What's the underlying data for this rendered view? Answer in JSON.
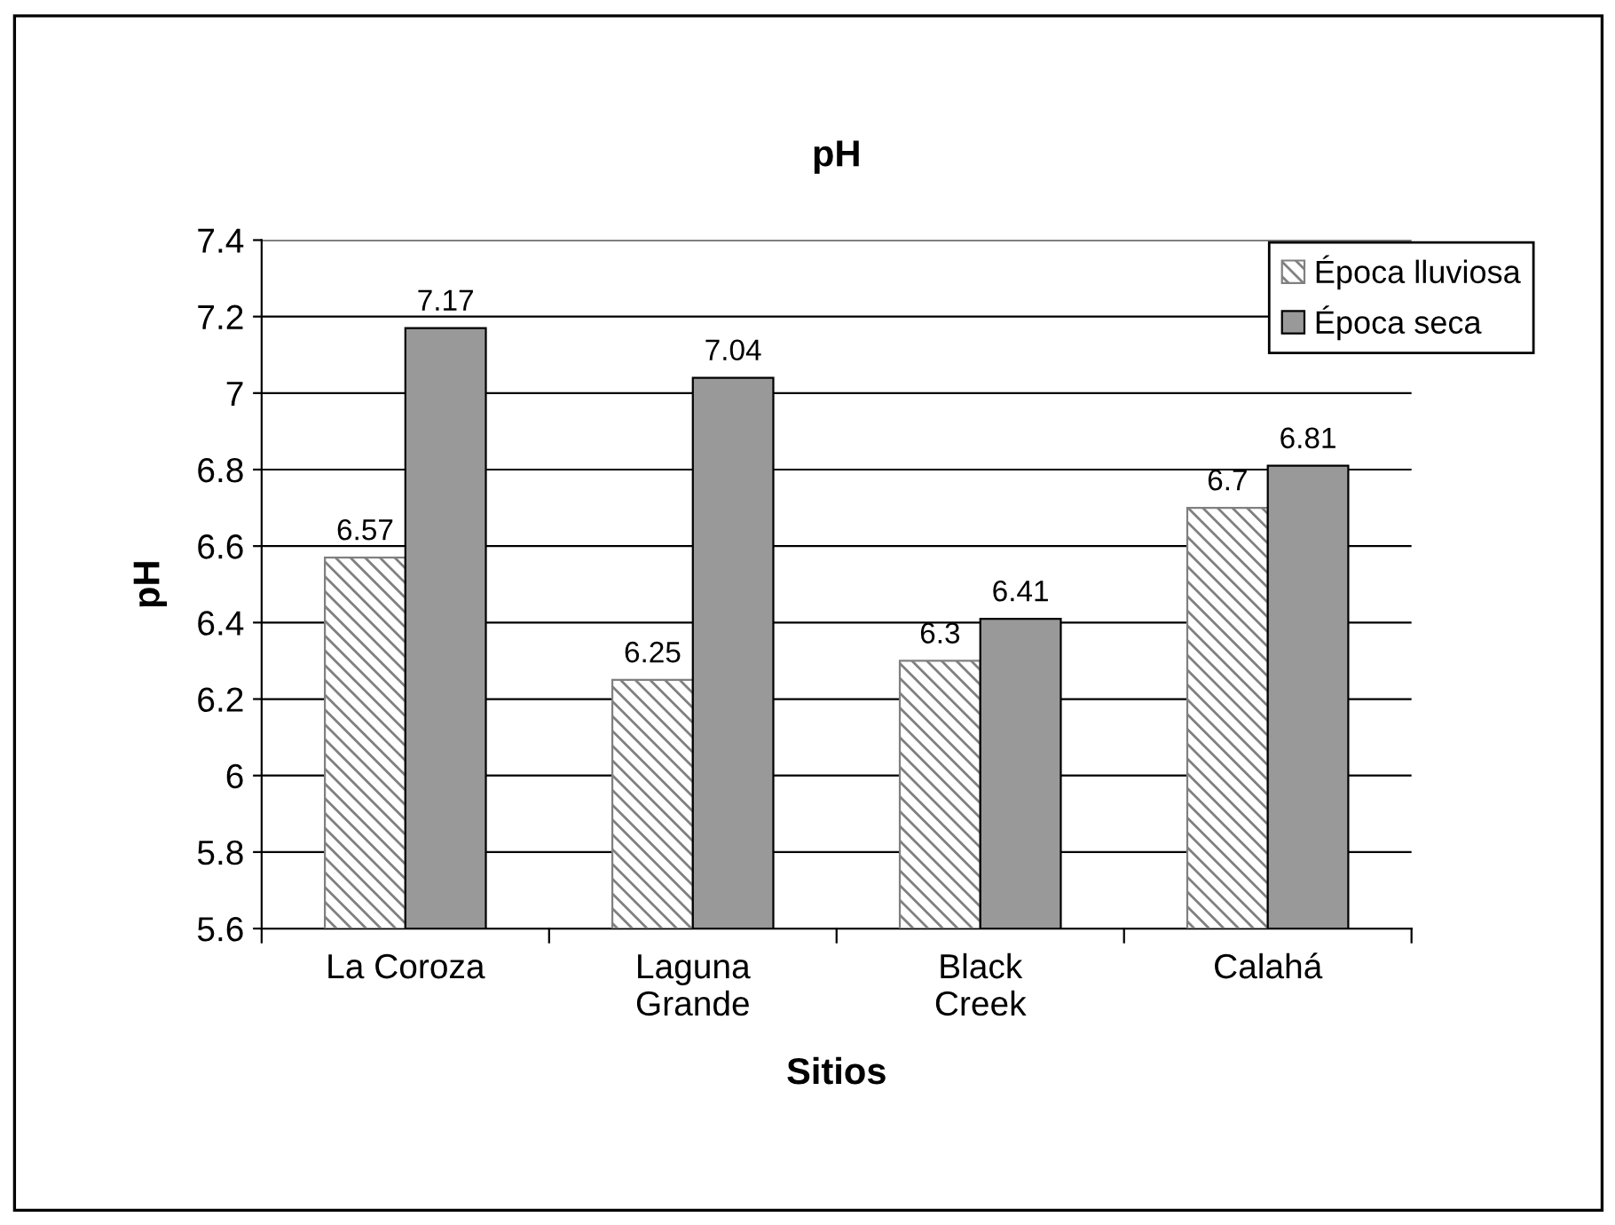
{
  "chart_data": {
    "type": "bar",
    "title": "pH",
    "xlabel": "Sitios",
    "ylabel": "pH",
    "categories": [
      "La Coroza",
      "Laguna\nGrande",
      "Black\nCreek",
      "Calahá"
    ],
    "series": [
      {
        "name": "Época lluviosa",
        "color": "#808080",
        "values": [
          6.57,
          6.25,
          6.3,
          6.7
        ]
      },
      {
        "name": "Época seca",
        "color": "#999999",
        "values": [
          7.17,
          7.04,
          6.41,
          6.81
        ]
      }
    ],
    "ylim": [
      5.6,
      7.4
    ],
    "yticks": [
      5.6,
      5.8,
      6,
      6.2,
      6.4,
      6.6,
      6.8,
      7,
      7.2,
      7.4
    ],
    "grid": "y",
    "legend": "top right",
    "data_labels": true
  }
}
